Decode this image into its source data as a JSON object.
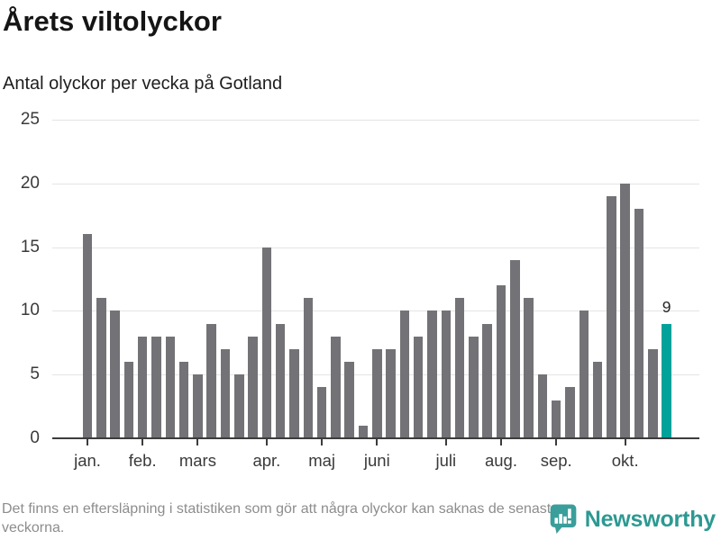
{
  "header": {
    "title": "Årets viltolyckor",
    "subtitle": "Antal olyckor per vecka på Gotland"
  },
  "chart_data": {
    "type": "bar",
    "title": "Årets viltolyckor",
    "subtitle": "Antal olyckor per vecka på Gotland",
    "values": [
      16,
      11,
      10,
      6,
      8,
      8,
      8,
      6,
      5,
      9,
      7,
      5,
      8,
      15,
      9,
      7,
      11,
      4,
      8,
      6,
      1,
      7,
      7,
      10,
      8,
      10,
      10,
      11,
      8,
      9,
      12,
      14,
      11,
      5,
      3,
      4,
      10,
      6,
      19,
      20,
      18,
      7,
      9
    ],
    "x_unit": "vecka",
    "highlight_index": 42,
    "highlight_value_label": "9",
    "month_ticks": [
      {
        "label": "jan.",
        "index": 0
      },
      {
        "label": "feb.",
        "index": 4
      },
      {
        "label": "mars",
        "index": 8
      },
      {
        "label": "apr.",
        "index": 13
      },
      {
        "label": "maj",
        "index": 17
      },
      {
        "label": "juni",
        "index": 21
      },
      {
        "label": "juli",
        "index": 26
      },
      {
        "label": "aug.",
        "index": 30
      },
      {
        "label": "sep.",
        "index": 34
      },
      {
        "label": "okt.",
        "index": 39
      }
    ],
    "yticks": [
      0,
      5,
      10,
      15,
      20,
      25
    ],
    "ylim": [
      0,
      25
    ],
    "grid": true,
    "legend": false,
    "bar_color": "#737377",
    "highlight_color": "#00a29a"
  },
  "footer": {
    "disclaimer": "Det finns en eftersläpning i statistiken som gör att några olyckor kan saknas de senaste veckorna.",
    "brand": "Newsworthy",
    "brand_color": "#2c9992",
    "logo_color": "#3a9e9a"
  }
}
